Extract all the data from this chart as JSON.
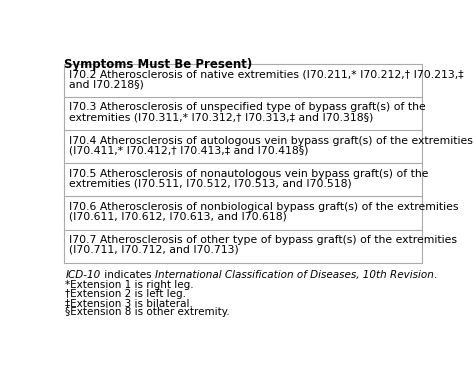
{
  "header_text": "Symptoms Must Be Present)",
  "rows_display": [
    [
      "I70.2 Atherosclerosis of native extremities (I70.211,* I70.212,† I70.213,‡",
      "and I70.218§)"
    ],
    [
      "I70.3 Atherosclerosis of unspecified type of bypass graft(s) of the",
      "extremities (I70.311,* I70.312,† I70.313,‡ and I70.318§)"
    ],
    [
      "I70.4 Atherosclerosis of autologous vein bypass graft(s) of the extremities",
      "(I70.411,* I70.412,† I70.413,‡ and I70.418§)"
    ],
    [
      "I70.5 Atherosclerosis of nonautologous vein bypass graft(s) of the",
      "extremities (I70.511, I70.512, I70.513, and I70.518)"
    ],
    [
      "I70.6 Atherosclerosis of nonbiological bypass graft(s) of the extremities",
      "(I70.611, I70.612, I70.613, and I70.618)"
    ],
    [
      "I70.7 Atherosclerosis of other type of bypass graft(s) of the extremities",
      "(I70.711, I70.712, and I70.713)"
    ]
  ],
  "bg_color": "#ffffff",
  "text_color": "#000000",
  "border_color": "#aaaaaa",
  "font_size": 7.8,
  "header_font_size": 8.5,
  "footnote_font_size": 7.5
}
